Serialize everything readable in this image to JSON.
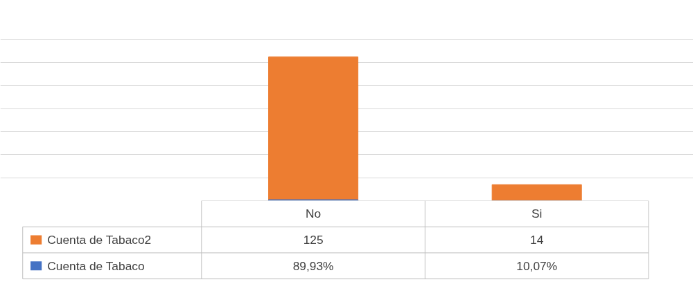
{
  "chart_data": {
    "type": "bar",
    "categories": [
      "No",
      "Si"
    ],
    "series": [
      {
        "name": "Cuenta de Tabaco2",
        "color": "#ed7d31",
        "values": [
          125,
          14
        ],
        "value_labels": [
          "125",
          "14"
        ]
      },
      {
        "name": "Cuenta de Tabaco",
        "color": "#4472c4",
        "values": [
          0.8993,
          0.1007
        ],
        "value_labels": [
          "89,93%",
          "10,07%"
        ]
      }
    ],
    "grid": "y",
    "tick_labels": "x",
    "legend": "bottom"
  }
}
